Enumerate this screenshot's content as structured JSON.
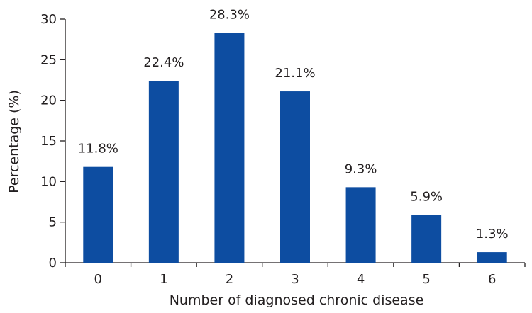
{
  "chart_data": {
    "type": "bar",
    "title": "",
    "xlabel": "Number of diagnosed chronic disease",
    "ylabel": "Percentage (%)",
    "categories": [
      "0",
      "1",
      "2",
      "3",
      "4",
      "5",
      "6"
    ],
    "values": [
      11.8,
      22.4,
      28.3,
      21.1,
      9.3,
      5.9,
      1.3
    ],
    "data_labels": [
      "11.8%",
      "22.4%",
      "28.3%",
      "21.1%",
      "9.3%",
      "5.9%",
      "1.3%"
    ],
    "ylim": [
      0,
      30
    ],
    "yticks": [
      0,
      5,
      10,
      15,
      20,
      25,
      30
    ],
    "grid": false,
    "legend": "none",
    "bar_color": "#0d4da1"
  }
}
